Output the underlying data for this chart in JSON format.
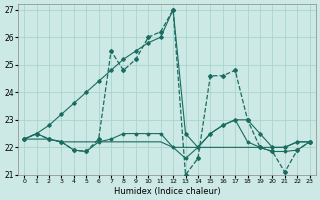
{
  "xlabel": "Humidex (Indice chaleur)",
  "xlim": [
    -0.5,
    23.5
  ],
  "ylim": [
    21,
    27.2
  ],
  "yticks": [
    21,
    22,
    23,
    24,
    25,
    26,
    27
  ],
  "xticks": [
    0,
    1,
    2,
    3,
    4,
    5,
    6,
    7,
    8,
    9,
    10,
    11,
    12,
    13,
    14,
    15,
    16,
    17,
    18,
    19,
    20,
    21,
    22,
    23
  ],
  "bg_color": "#cce9e5",
  "grid_color": "#aad4ce",
  "line_color": "#1a6b60",
  "series": {
    "flat": [
      22.3,
      22.3,
      22.3,
      22.2,
      22.2,
      22.2,
      22.2,
      22.2,
      22.2,
      22.2,
      22.2,
      22.2,
      22.0,
      22.0,
      22.0,
      22.0,
      22.0,
      22.0,
      22.0,
      22.0,
      22.0,
      22.0,
      22.2,
      22.2
    ],
    "diagonal": [
      22.3,
      22.5,
      22.8,
      23.2,
      23.6,
      24.0,
      24.4,
      24.8,
      25.2,
      25.5,
      25.8,
      26.0,
      27.0,
      22.5,
      22.0,
      22.5,
      22.8,
      23.0,
      23.0,
      22.5,
      22.0,
      22.0,
      22.2,
      22.2
    ],
    "zigzag": [
      22.3,
      22.5,
      22.3,
      22.2,
      21.9,
      21.85,
      22.3,
      25.5,
      24.8,
      25.2,
      26.0,
      26.2,
      27.0,
      21.0,
      21.6,
      24.6,
      24.6,
      24.8,
      23.0,
      22.0,
      21.85,
      21.1,
      21.9,
      22.2
    ],
    "medium": [
      22.3,
      22.5,
      22.3,
      22.2,
      21.9,
      21.85,
      22.2,
      22.3,
      22.5,
      22.5,
      22.5,
      22.5,
      22.0,
      21.6,
      22.0,
      22.5,
      22.8,
      23.0,
      22.2,
      22.0,
      21.85,
      21.85,
      21.9,
      22.2
    ]
  }
}
